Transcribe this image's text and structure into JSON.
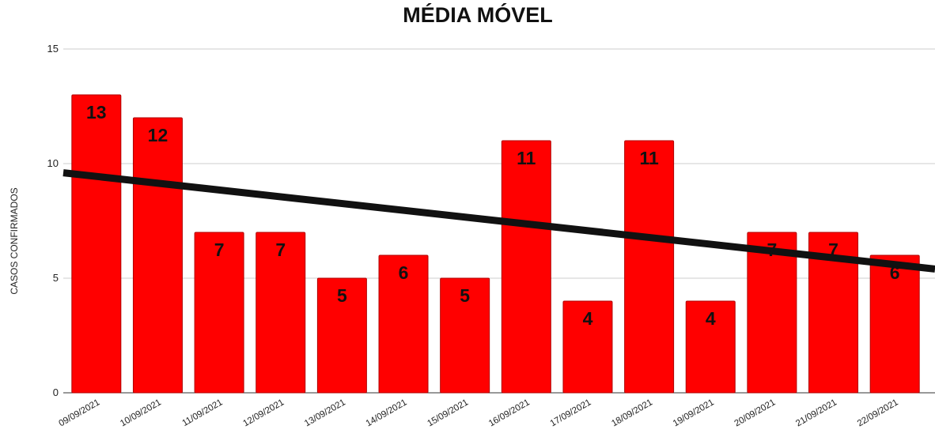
{
  "chart_data": {
    "type": "bar",
    "title": "MÉDIA MÓVEL",
    "xlabel": "",
    "ylabel": "CASOS CONFIRMADOS",
    "ylim": [
      0,
      15
    ],
    "yticks": [
      0,
      5,
      10,
      15
    ],
    "grid": true,
    "legend": "none",
    "categories": [
      "09/09/2021",
      "10/09/2021",
      "11/09/2021",
      "12/09/2021",
      "13/09/2021",
      "14/09/2021",
      "15/09/2021",
      "16/09/2021",
      "17/09/2021",
      "18/09/2021",
      "19/09/2021",
      "20/09/2021",
      "21/09/2021",
      "22/09/2021"
    ],
    "series": [
      {
        "values": [
          13,
          12,
          7,
          7,
          5,
          6,
          5,
          11,
          4,
          11,
          4,
          7,
          7,
          6
        ],
        "color": "#ff0000",
        "data_labels": true
      }
    ],
    "trendline": {
      "type": "linear",
      "color": "#111111",
      "start_value": 9.6,
      "end_value": 5.4
    },
    "colors": {
      "bar": "#ff0000",
      "bar_border": "#b00000",
      "data_label": "#111111",
      "trendline": "#111111"
    }
  }
}
